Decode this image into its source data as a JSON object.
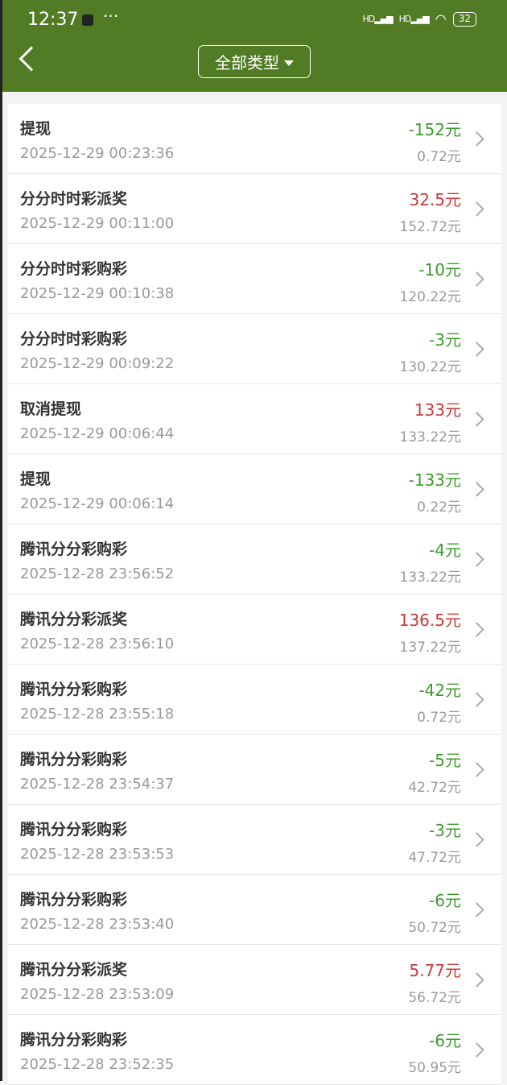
{
  "status": {
    "time": "12:37",
    "dots": "···",
    "signal1": "HD",
    "signal2": "HD",
    "battery": "32"
  },
  "header": {
    "filter_label": "全部类型"
  },
  "colors": {
    "header": "#517b24",
    "negative": "#3c9a2c",
    "positive": "#c83a3a"
  },
  "rows": [
    {
      "title": "提现",
      "date": "2025-12-29 00:23:36",
      "amount": "-152元",
      "balance": "0.72元",
      "sign": "neg"
    },
    {
      "title": "分分时时彩派奖",
      "date": "2025-12-29 00:11:00",
      "amount": "32.5元",
      "balance": "152.72元",
      "sign": "pos"
    },
    {
      "title": "分分时时彩购彩",
      "date": "2025-12-29 00:10:38",
      "amount": "-10元",
      "balance": "120.22元",
      "sign": "neg"
    },
    {
      "title": "分分时时彩购彩",
      "date": "2025-12-29 00:09:22",
      "amount": "-3元",
      "balance": "130.22元",
      "sign": "neg"
    },
    {
      "title": "取消提现",
      "date": "2025-12-29 00:06:44",
      "amount": "133元",
      "balance": "133.22元",
      "sign": "pos"
    },
    {
      "title": "提现",
      "date": "2025-12-29 00:06:14",
      "amount": "-133元",
      "balance": "0.22元",
      "sign": "neg"
    },
    {
      "title": "腾讯分分彩购彩",
      "date": "2025-12-28 23:56:52",
      "amount": "-4元",
      "balance": "133.22元",
      "sign": "neg"
    },
    {
      "title": "腾讯分分彩派奖",
      "date": "2025-12-28 23:56:10",
      "amount": "136.5元",
      "balance": "137.22元",
      "sign": "pos"
    },
    {
      "title": "腾讯分分彩购彩",
      "date": "2025-12-28 23:55:18",
      "amount": "-42元",
      "balance": "0.72元",
      "sign": "neg"
    },
    {
      "title": "腾讯分分彩购彩",
      "date": "2025-12-28 23:54:37",
      "amount": "-5元",
      "balance": "42.72元",
      "sign": "neg"
    },
    {
      "title": "腾讯分分彩购彩",
      "date": "2025-12-28 23:53:53",
      "amount": "-3元",
      "balance": "47.72元",
      "sign": "neg"
    },
    {
      "title": "腾讯分分彩购彩",
      "date": "2025-12-28 23:53:40",
      "amount": "-6元",
      "balance": "50.72元",
      "sign": "neg"
    },
    {
      "title": "腾讯分分彩派奖",
      "date": "2025-12-28 23:53:09",
      "amount": "5.77元",
      "balance": "56.72元",
      "sign": "pos"
    },
    {
      "title": "腾讯分分彩购彩",
      "date": "2025-12-28 23:52:35",
      "amount": "-6元",
      "balance": "50.95元",
      "sign": "neg"
    }
  ]
}
